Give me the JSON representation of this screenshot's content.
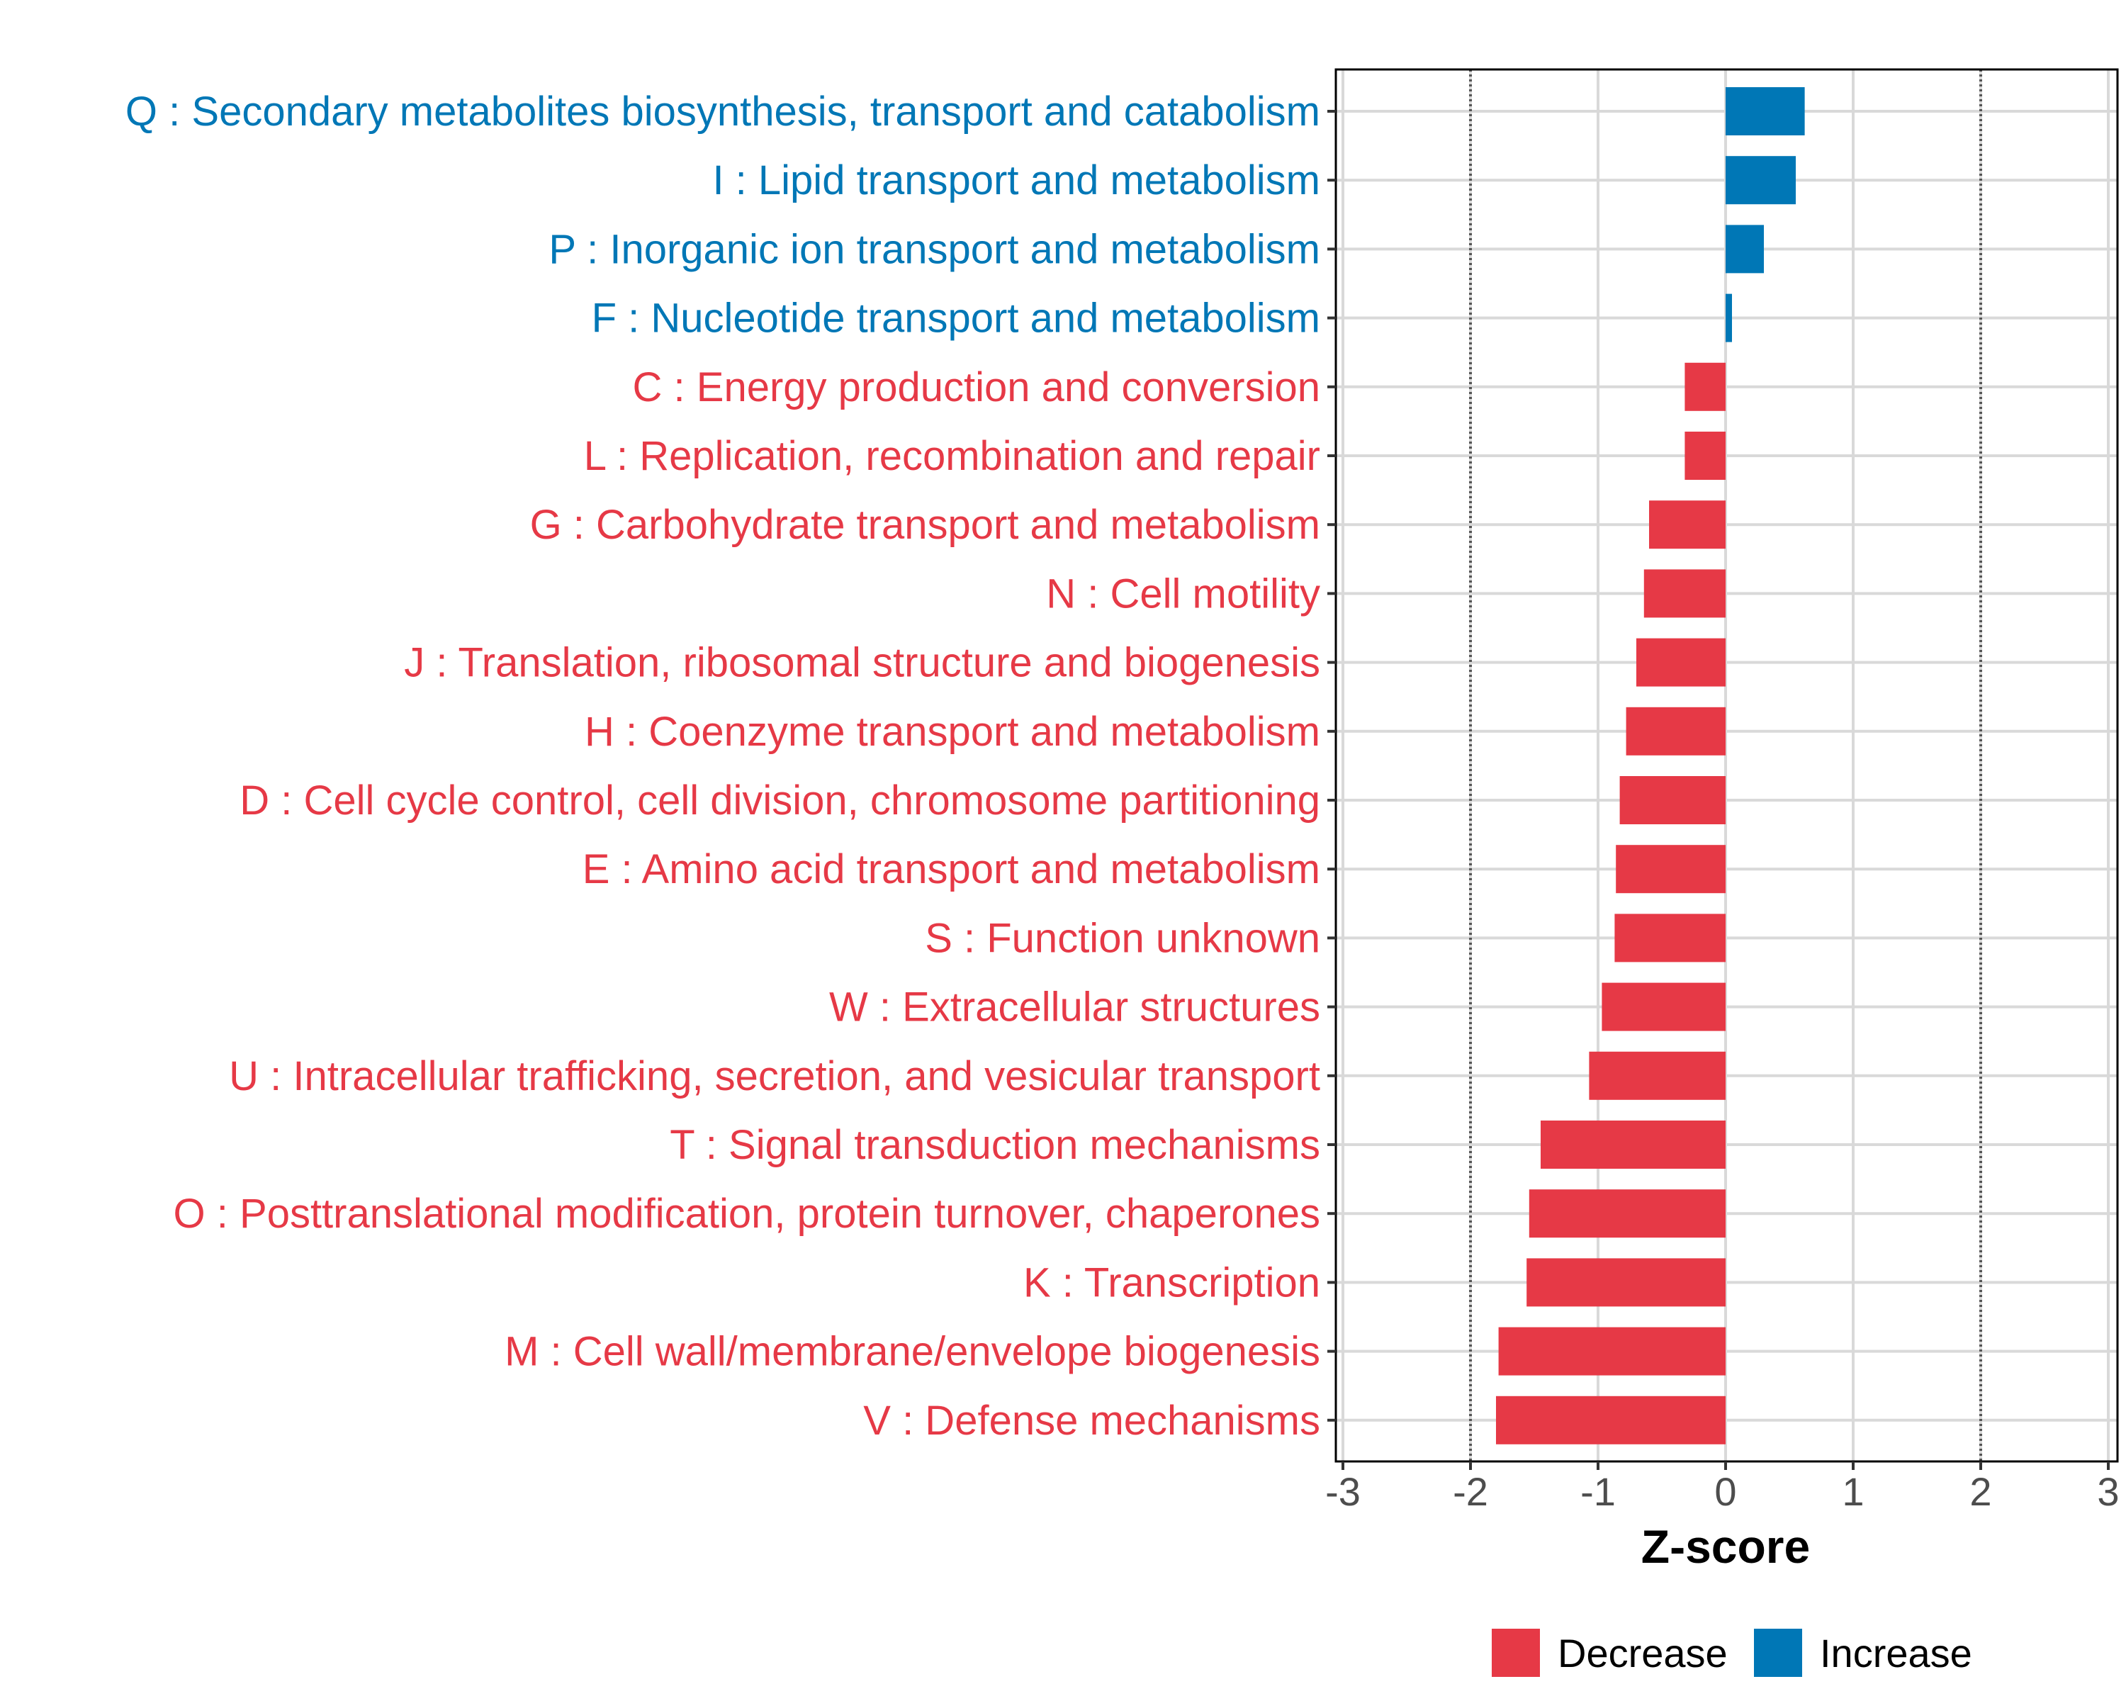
{
  "chart_data": {
    "type": "bar",
    "orientation": "horizontal",
    "title": "",
    "xlabel": "Z-score",
    "ylabel": "",
    "xlim": [
      -3,
      3
    ],
    "xticks": [
      -3,
      -2,
      -1,
      0,
      1,
      2,
      3
    ],
    "xtick_labels": [
      "-3",
      "-2",
      "-1",
      "0",
      "1",
      "2",
      "3"
    ],
    "reference_lines": [
      -2,
      2
    ],
    "grid": true,
    "categories": [
      "Q : Secondary metabolites biosynthesis, transport and catabolism",
      "I : Lipid transport and metabolism",
      "P : Inorganic ion transport and metabolism",
      "F : Nucleotide transport and metabolism",
      "C : Energy production and conversion",
      "L : Replication, recombination and repair",
      "G : Carbohydrate transport and metabolism",
      "N : Cell motility",
      "J : Translation, ribosomal structure and biogenesis",
      "H : Coenzyme transport and metabolism",
      "D : Cell cycle control, cell division, chromosome partitioning",
      "E : Amino acid transport and metabolism",
      "S : Function unknown",
      "W : Extracellular structures",
      "U : Intracellular trafficking, secretion, and vesicular transport",
      "T : Signal transduction mechanisms",
      "O : Posttranslational modification, protein turnover, chaperones",
      "K : Transcription",
      "M : Cell wall/membrane/envelope biogenesis",
      "V : Defense mechanisms"
    ],
    "values": [
      0.62,
      0.55,
      0.3,
      0.05,
      -0.32,
      -0.32,
      -0.6,
      -0.64,
      -0.7,
      -0.78,
      -0.83,
      -0.86,
      -0.87,
      -0.97,
      -1.07,
      -1.45,
      -1.54,
      -1.56,
      -1.78,
      -1.8
    ],
    "groups": [
      "Increase",
      "Increase",
      "Increase",
      "Increase",
      "Decrease",
      "Decrease",
      "Decrease",
      "Decrease",
      "Decrease",
      "Decrease",
      "Decrease",
      "Decrease",
      "Decrease",
      "Decrease",
      "Decrease",
      "Decrease",
      "Decrease",
      "Decrease",
      "Decrease",
      "Decrease"
    ],
    "legend": {
      "position": "bottom",
      "entries": [
        {
          "name": "Decrease",
          "color": "#E63946"
        },
        {
          "name": "Increase",
          "color": "#0077B6"
        }
      ]
    },
    "colors": {
      "Decrease": "#E63946",
      "Increase": "#0077B6",
      "grid": "#d9d9d9",
      "refline": "#555555"
    }
  }
}
